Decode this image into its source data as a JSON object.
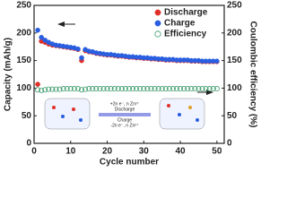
{
  "chart_data": {
    "type": "scatter",
    "x_label": "Cycle number",
    "y_label": "Capacity (mAh/g)",
    "y2_label": "Coulombic efficiency (%)",
    "x": [
      1,
      2,
      3,
      4,
      5,
      6,
      7,
      8,
      9,
      10,
      11,
      12,
      13,
      14,
      15,
      16,
      17,
      18,
      19,
      20,
      21,
      22,
      23,
      24,
      25,
      26,
      27,
      28,
      29,
      30,
      31,
      32,
      33,
      34,
      35,
      36,
      37,
      38,
      39,
      40,
      41,
      42,
      43,
      44,
      45,
      46,
      47,
      48,
      49,
      50
    ],
    "xlim": [
      0,
      52
    ],
    "xticks": [
      0,
      10,
      20,
      30,
      40,
      50
    ],
    "ylim": [
      0,
      250
    ],
    "yticks": [
      0,
      50,
      100,
      150,
      200,
      250
    ],
    "y2lim": [
      0,
      250
    ],
    "y2ticks": [
      0,
      50,
      100,
      150,
      200,
      250
    ],
    "legend": "upper right",
    "series": [
      {
        "name": "Discharge",
        "color": "#e0302a",
        "marker": "filled",
        "values": [
          107,
          185,
          183,
          180,
          178,
          177,
          176,
          175,
          174,
          173,
          172,
          170,
          150,
          168,
          166,
          165,
          163,
          162,
          161,
          160,
          160,
          159,
          158,
          158,
          157,
          156,
          156,
          155,
          155,
          154,
          154,
          153,
          153,
          152,
          152,
          151,
          151,
          151,
          150,
          150,
          150,
          150,
          149,
          149,
          149,
          148,
          148,
          148,
          148,
          148
        ]
      },
      {
        "name": "Charge",
        "color": "#2a5ee0",
        "marker": "filled",
        "values": [
          205,
          192,
          187,
          183,
          180,
          178,
          177,
          176,
          175,
          174,
          173,
          171,
          155,
          170,
          167,
          166,
          164,
          163,
          162,
          161,
          161,
          160,
          159,
          159,
          158,
          157,
          157,
          156,
          156,
          155,
          155,
          154,
          154,
          153,
          153,
          152,
          152,
          152,
          151,
          151,
          151,
          151,
          150,
          150,
          150,
          149,
          149,
          149,
          149,
          149
        ]
      },
      {
        "name": "Efficiency",
        "color": "#3a9a6a",
        "marker": "hollow",
        "axis": "y2",
        "values": [
          97,
          96,
          97,
          98,
          98,
          98,
          98,
          99,
          99,
          99,
          99,
          99,
          97,
          98,
          99,
          99,
          99,
          99,
          99,
          99,
          99,
          99,
          99,
          99,
          99,
          99,
          99,
          99,
          99,
          99,
          99,
          99,
          99,
          99,
          99,
          99,
          99,
          99,
          99,
          99,
          99,
          99,
          99,
          99,
          99,
          99,
          99,
          99,
          99,
          99
        ]
      }
    ],
    "annotations": [
      "+2n e⁻, n Zn²⁺",
      "Discharge",
      "Charge",
      "-2n e⁻, n Zn²⁺"
    ]
  }
}
